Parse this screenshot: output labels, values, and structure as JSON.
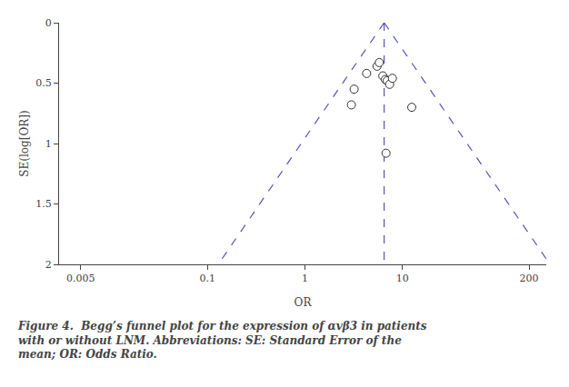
{
  "chart_data": {
    "type": "scatter",
    "xlabel": "OR",
    "ylabel": "SE(log[OR])",
    "annotations": [
      "Figure 4.",
      "  Begg’s funnel plot for the expression of αvβ3 in patients\nwith or without LNM. Abbreviations: SE: Standard Error of the\nmean; OR: Odds Ratio."
    ],
    "log": "x",
    "grid": false,
    "xlim": [
      0.003,
      300
    ],
    "xticks": [
      0.005,
      0.1,
      1,
      10,
      200
    ],
    "ylim": [
      2,
      0
    ],
    "yticks": [
      0,
      0.5,
      1,
      1.5,
      2
    ],
    "series": [
      {
        "type": "line",
        "line_style": "dashed",
        "color": "#5555bb",
        "x": [
          6.5,
          0.12897
        ],
        "values": [
          0,
          2
        ]
      },
      {
        "type": "line",
        "line_style": "dashed",
        "color": "#5555bb",
        "x": [
          6.5,
          327.6
        ],
        "values": [
          0,
          2
        ]
      },
      {
        "type": "line",
        "line_style": "dashed",
        "color": "#5555bb",
        "x": [
          6.5,
          6.5
        ],
        "values": [
          0,
          2
        ]
      },
      {
        "type": "scatter",
        "marker": "circle",
        "color": "white",
        "x": [
          3.2,
          4.3,
          5.5,
          5.8,
          6.3,
          6.7,
          7.0,
          7.4,
          7.9,
          12.5,
          6.8,
          3.0
        ],
        "values": [
          0.55,
          0.42,
          0.36,
          0.33,
          0.44,
          0.47,
          0.48,
          0.51,
          0.46,
          0.7,
          1.08,
          0.68
        ]
      }
    ]
  }
}
